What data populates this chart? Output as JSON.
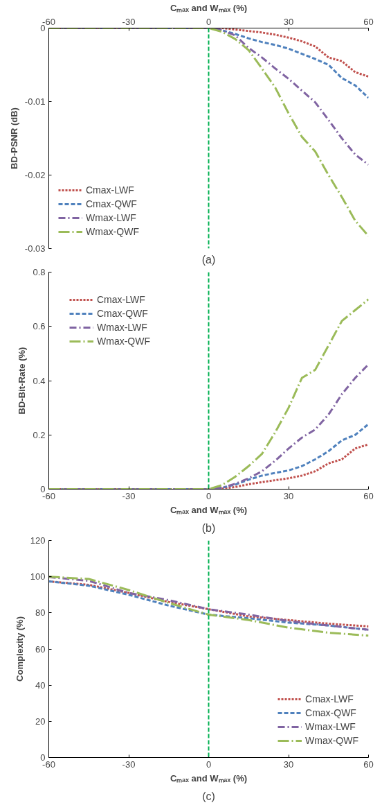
{
  "chart_data": [
    {
      "type": "line",
      "title": "(a)",
      "x2label": "Cₘₐₓ and Wₘₐₓ (%)",
      "ylabel": "BD-PSNR (dB)",
      "xlim": [
        -60,
        60
      ],
      "xticks": [
        -60,
        -30,
        0,
        30,
        60
      ],
      "ylim": [
        -0.03,
        0
      ],
      "yticks": [
        {
          "value": -0.03,
          "label": "-0.03"
        },
        {
          "value": -0.02,
          "label": "-0.02"
        },
        {
          "value": -0.01,
          "label": "-0.01"
        },
        0
      ],
      "grid": false,
      "legend": "bottom left",
      "marker": "none",
      "x": [
        -60,
        -30,
        0,
        5,
        10,
        15,
        20,
        25,
        30,
        35,
        40,
        45,
        50,
        55,
        60
      ],
      "ref_lines": [
        {
          "axis": "x",
          "value": 0,
          "label": null,
          "color": "#00b050",
          "line_style": "dashed"
        }
      ],
      "series": [
        {
          "name": "Cmax-LWF",
          "color": "#c0504d",
          "line_style": "dotted",
          "values": [
            0,
            0,
            0,
            0,
            -0.0002,
            -0.0004,
            -0.0006,
            -0.0009,
            -0.0013,
            -0.0018,
            -0.0025,
            -0.004,
            -0.0045,
            -0.006,
            -0.0066
          ]
        },
        {
          "name": "Cmax-QWF",
          "color": "#4f81bd",
          "line_style": "dashed",
          "values": [
            0,
            0,
            0,
            -0.0003,
            -0.0008,
            -0.0014,
            -0.0019,
            -0.0023,
            -0.0028,
            -0.0035,
            -0.0042,
            -0.005,
            -0.0068,
            -0.0078,
            -0.0095
          ]
        },
        {
          "name": "Wmax-LWF",
          "color": "#8064a2",
          "line_style": "dashdot",
          "values": [
            0,
            0,
            0,
            -0.0003,
            -0.001,
            -0.0027,
            -0.004,
            -0.0055,
            -0.0069,
            -0.0085,
            -0.0101,
            -0.0125,
            -0.015,
            -0.0172,
            -0.0186
          ]
        },
        {
          "name": "Wmax-QWF",
          "color": "#9bbb59",
          "line_style": "longdashdot",
          "values": [
            0,
            0,
            0,
            -0.0005,
            -0.0015,
            -0.003,
            -0.0055,
            -0.0081,
            -0.0116,
            -0.0148,
            -0.0168,
            -0.02,
            -0.023,
            -0.0262,
            -0.0283
          ]
        }
      ]
    },
    {
      "type": "line",
      "title": "(b)",
      "xlabel": "Cₘₐₓ and Wₘₐₓ (%)",
      "ylabel": "BD-Bit-Rate (%)",
      "xlim": [
        -60,
        60
      ],
      "xticks": [
        -60,
        -30,
        0,
        30,
        60
      ],
      "ylim": [
        0,
        0.8
      ],
      "yticks": [
        0,
        0.2,
        0.4,
        0.6,
        0.8
      ],
      "grid": false,
      "legend": "top left",
      "marker": "none",
      "x": [
        -60,
        -30,
        0,
        5,
        10,
        15,
        20,
        25,
        30,
        35,
        40,
        45,
        50,
        55,
        60
      ],
      "ref_lines": [
        {
          "axis": "x",
          "value": 0,
          "label": null,
          "color": "#00b050",
          "line_style": "dashed"
        }
      ],
      "series": [
        {
          "name": "Cmax-LWF",
          "color": "#c0504d",
          "line_style": "dotted",
          "values": [
            0,
            0,
            0,
            0.002,
            0.008,
            0.018,
            0.026,
            0.033,
            0.04,
            0.05,
            0.066,
            0.095,
            0.11,
            0.15,
            0.165
          ]
        },
        {
          "name": "Cmax-QWF",
          "color": "#4f81bd",
          "line_style": "dashed",
          "values": [
            0,
            0,
            0,
            0.005,
            0.017,
            0.035,
            0.05,
            0.06,
            0.069,
            0.085,
            0.11,
            0.14,
            0.18,
            0.2,
            0.24
          ]
        },
        {
          "name": "Wmax-LWF",
          "color": "#8064a2",
          "line_style": "dashdot",
          "values": [
            0,
            0,
            0,
            0.005,
            0.02,
            0.04,
            0.066,
            0.105,
            0.15,
            0.19,
            0.22,
            0.275,
            0.35,
            0.41,
            0.46
          ]
        },
        {
          "name": "Wmax-QWF",
          "color": "#9bbb59",
          "line_style": "longdashdot",
          "values": [
            0,
            0,
            0,
            0.015,
            0.046,
            0.085,
            0.13,
            0.21,
            0.3,
            0.41,
            0.44,
            0.53,
            0.62,
            0.66,
            0.7
          ]
        }
      ]
    },
    {
      "type": "line",
      "title": "(c)",
      "xlabel": "Cₘₐₓ and Wₘₐₓ (%)",
      "ylabel": "Complexity (%)",
      "xlim": [
        -60,
        60
      ],
      "xticks": [
        -60,
        -30,
        0,
        30,
        60
      ],
      "ylim": [
        0,
        120
      ],
      "yticks": [
        0,
        20,
        40,
        60,
        80,
        100,
        120
      ],
      "grid": false,
      "legend": "bottom right",
      "marker": "none",
      "x": [
        -60,
        -45,
        -30,
        -15,
        0,
        15,
        30,
        45,
        60
      ],
      "ref_lines": [
        {
          "axis": "x",
          "value": 0,
          "label": null,
          "color": "#00b050",
          "line_style": "dashed"
        }
      ],
      "series": [
        {
          "name": "Cmax-LWF",
          "color": "#c0504d",
          "line_style": "dotted",
          "values": [
            97.4,
            95.5,
            91,
            86,
            82,
            78,
            76,
            74,
            72.5
          ]
        },
        {
          "name": "Cmax-QWF",
          "color": "#4f81bd",
          "line_style": "dashed",
          "values": [
            97.4,
            95,
            90,
            84,
            79,
            77,
            74.6,
            73,
            70.6
          ]
        },
        {
          "name": "Wmax-LWF",
          "color": "#8064a2",
          "line_style": "dashdot",
          "values": [
            99.8,
            97.7,
            91,
            87,
            82,
            79,
            75.4,
            73,
            70.6
          ]
        },
        {
          "name": "Wmax-QWF",
          "color": "#9bbb59",
          "line_style": "longdashdot",
          "values": [
            100,
            98.7,
            92.6,
            85.5,
            79,
            76,
            71.8,
            69,
            67.4
          ]
        }
      ]
    }
  ]
}
